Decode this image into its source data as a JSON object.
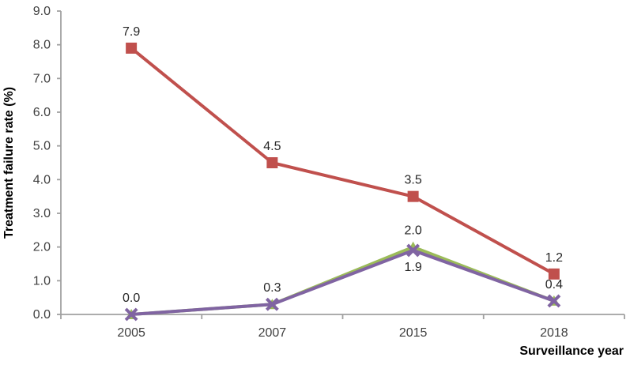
{
  "chart_data": {
    "type": "line",
    "title": "",
    "xlabel": "Surveillance year",
    "ylabel": "Treatment failure rate (%)",
    "categories": [
      "2005",
      "2007",
      "2015",
      "2018"
    ],
    "ylim": [
      0,
      9
    ],
    "y_tick_step": 1.0,
    "y_tick_labels": [
      "0.0",
      "1.0",
      "2.0",
      "3.0",
      "4.0",
      "5.0",
      "6.0",
      "7.0",
      "8.0",
      "9.0"
    ],
    "grid": "off",
    "legend": "none",
    "colors": {
      "axis": "#a0a0a0",
      "tick_label": "#3f3f3f",
      "data_label": "#262626"
    },
    "series": [
      {
        "name": "red-square-series",
        "marker": "square",
        "color": "#c0504d",
        "values": [
          7.9,
          4.5,
          3.5,
          1.2
        ],
        "data_labels": [
          "7.9",
          "4.5",
          "3.5",
          "1.2"
        ],
        "label_positions": [
          "above",
          "above",
          "above",
          "above"
        ]
      },
      {
        "name": "green-triangle-series",
        "marker": "triangle",
        "color": "#9bbb59",
        "values": [
          0.0,
          0.3,
          2.0,
          0.4
        ],
        "data_labels": [
          "0.0",
          "0.3",
          "2.0",
          "0.4"
        ],
        "label_positions": [
          "above",
          "above",
          "above",
          "above"
        ]
      },
      {
        "name": "purple-x-series",
        "marker": "x",
        "color": "#8064a2",
        "values": [
          0.0,
          0.3,
          1.9,
          0.4
        ],
        "data_labels": [
          null,
          null,
          "1.9",
          null
        ],
        "label_positions": [
          null,
          null,
          "below",
          null
        ]
      }
    ]
  }
}
